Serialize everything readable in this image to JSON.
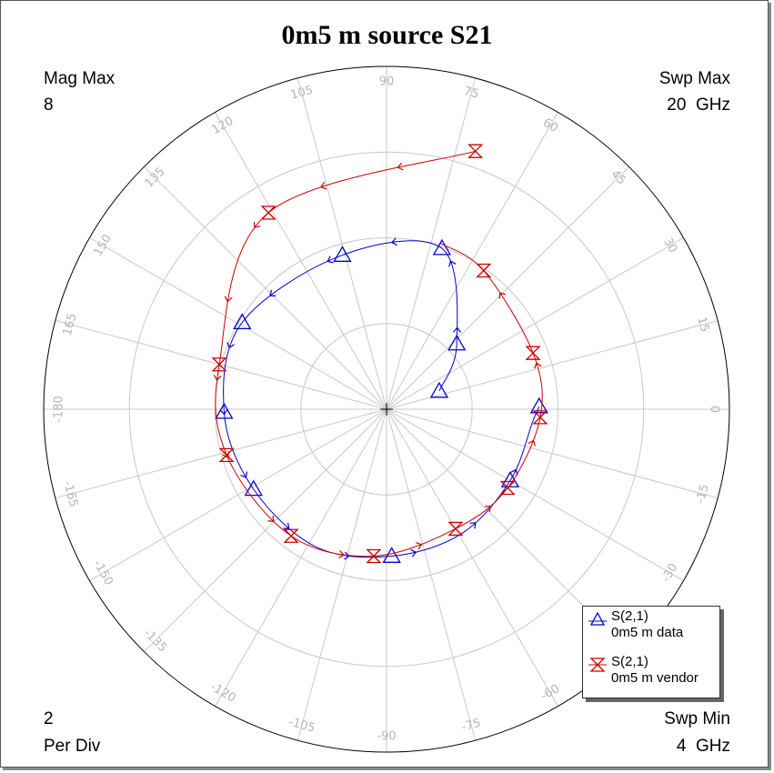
{
  "chart_data": {
    "type": "polar",
    "title": "0m5 m source S21",
    "mag_max_label": "Mag Max",
    "mag_max_value": "8",
    "per_div_value": "2",
    "per_div_label": "Per Div",
    "swp_max_label": "Swp Max",
    "swp_max_value": "20  GHz",
    "swp_min_label": "Swp Min",
    "swp_min_value": "4  GHz",
    "r_max": 8,
    "r_div": 2,
    "angle_ticks": [
      0,
      15,
      30,
      45,
      60,
      75,
      90,
      105,
      120,
      135,
      150,
      165,
      -180,
      -165,
      -150,
      -135,
      -120,
      -105,
      -90,
      -75,
      -60,
      -45,
      -30,
      -15
    ],
    "angle_tick_labels": [
      "0",
      "15",
      "30",
      "45",
      "60",
      "75",
      "90",
      "105",
      "120",
      "135",
      "150",
      "165",
      "-180",
      "-165",
      "-150",
      "-135",
      "-120",
      "-105",
      "-90",
      "-75",
      "-60",
      "-45",
      "-30",
      "-15"
    ],
    "series": [
      {
        "name": "S(2,1)",
        "description": "0m5 m data",
        "color": "#0000cc",
        "marker": "triangle",
        "points": [
          [
            1.3,
            19
          ],
          [
            2.24,
            43
          ],
          [
            3.97,
            71
          ],
          [
            3.74,
            106
          ],
          [
            3.93,
            149
          ],
          [
            3.79,
            181
          ],
          [
            3.62,
            211
          ],
          [
            3.61,
            243
          ],
          [
            3.43,
            272
          ],
          [
            3.39,
            301
          ],
          [
            3.33,
            330
          ],
          [
            3.42,
            355
          ],
          [
            3.56,
            1
          ]
        ],
        "markers": [
          [
            1.3,
            19
          ],
          [
            3.74,
            106
          ],
          [
            3.93,
            149
          ],
          [
            3.79,
            181
          ],
          [
            3.62,
            211
          ],
          [
            3.43,
            272
          ],
          [
            3.33,
            330
          ],
          [
            2.24,
            43
          ],
          [
            3.97,
            71
          ],
          [
            3.56,
            1
          ]
        ]
      },
      {
        "name": "S(2,1)",
        "description": "0m5 m vendor",
        "color": "#cc0000",
        "marker": "hourglass",
        "points": [
          [
            6.37,
            71
          ],
          [
            5.35,
            121
          ],
          [
            4.04,
            165
          ],
          [
            3.88,
            196
          ],
          [
            3.7,
            233
          ],
          [
            3.44,
            265
          ],
          [
            3.22,
            300
          ],
          [
            3.37,
            327
          ],
          [
            3.59,
            357
          ],
          [
            3.66,
            21
          ],
          [
            3.95,
            55
          ],
          [
            4.07,
            72
          ]
        ],
        "markers": [
          [
            6.37,
            71
          ],
          [
            5.35,
            121
          ],
          [
            4.04,
            165
          ],
          [
            3.88,
            196
          ],
          [
            3.7,
            233
          ],
          [
            3.44,
            265
          ],
          [
            3.22,
            300
          ],
          [
            3.37,
            327
          ],
          [
            3.59,
            357
          ],
          [
            3.66,
            21
          ],
          [
            3.95,
            55
          ]
        ]
      }
    ]
  }
}
